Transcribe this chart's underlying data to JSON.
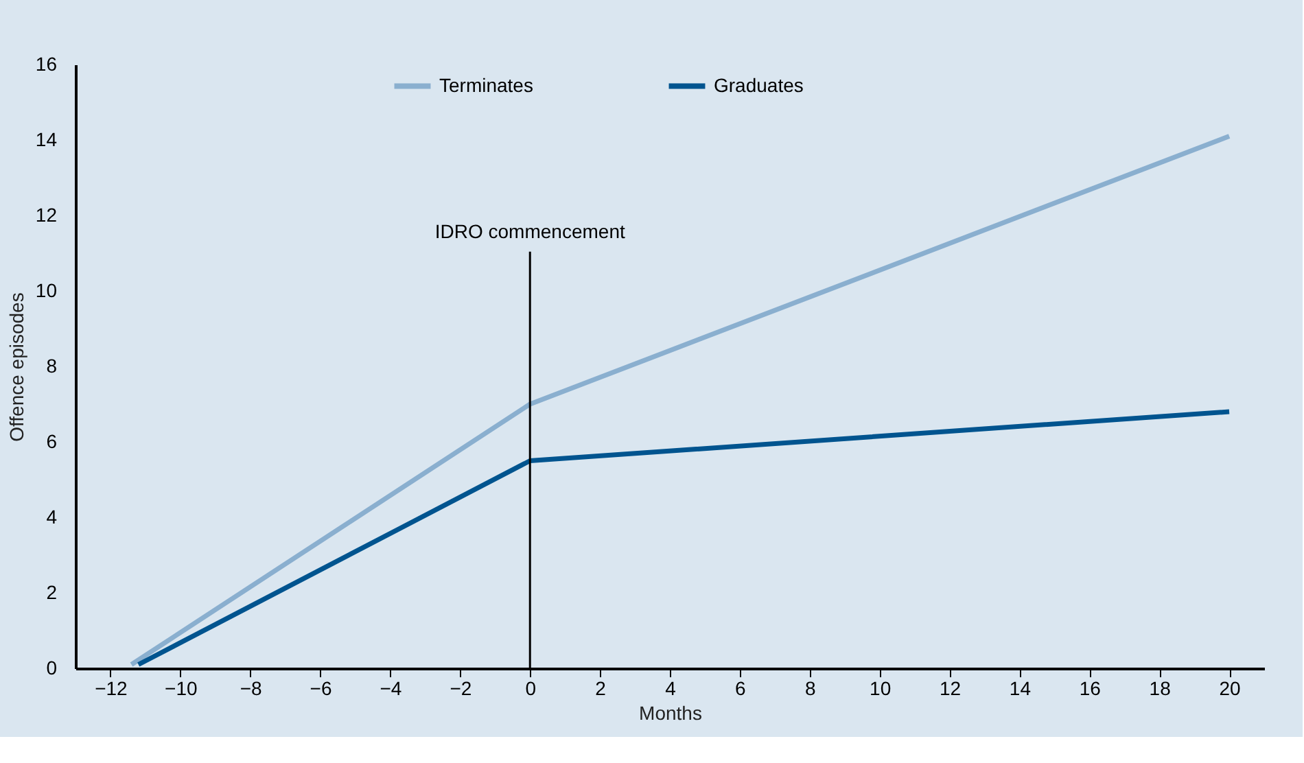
{
  "chart_data": {
    "type": "line",
    "xlabel": "Months",
    "ylabel": "Offence episodes",
    "series": [
      {
        "name": "Terminates",
        "color": "#8aafcf",
        "x": [
          -11.4,
          0,
          20
        ],
        "values": [
          0.1,
          7.0,
          14.1
        ]
      },
      {
        "name": "Graduates",
        "color": "#00548f",
        "x": [
          -11.2,
          0,
          20
        ],
        "values": [
          0.1,
          5.5,
          6.8
        ]
      }
    ],
    "xlim": [
      -13,
      21
    ],
    "xticks": [
      -12,
      -10,
      -8,
      -6,
      -4,
      -2,
      0,
      2,
      4,
      6,
      8,
      10,
      12,
      14,
      16,
      18,
      20
    ],
    "ylim": [
      0,
      16
    ],
    "yticks": [
      0,
      2,
      4,
      6,
      8,
      10,
      12,
      14,
      16
    ],
    "ref_lines": [
      {
        "axis": "x",
        "value": 0,
        "label": "IDRO commencement"
      }
    ],
    "grid": false,
    "legend": "top",
    "marker": "none",
    "line_style": "solid"
  }
}
